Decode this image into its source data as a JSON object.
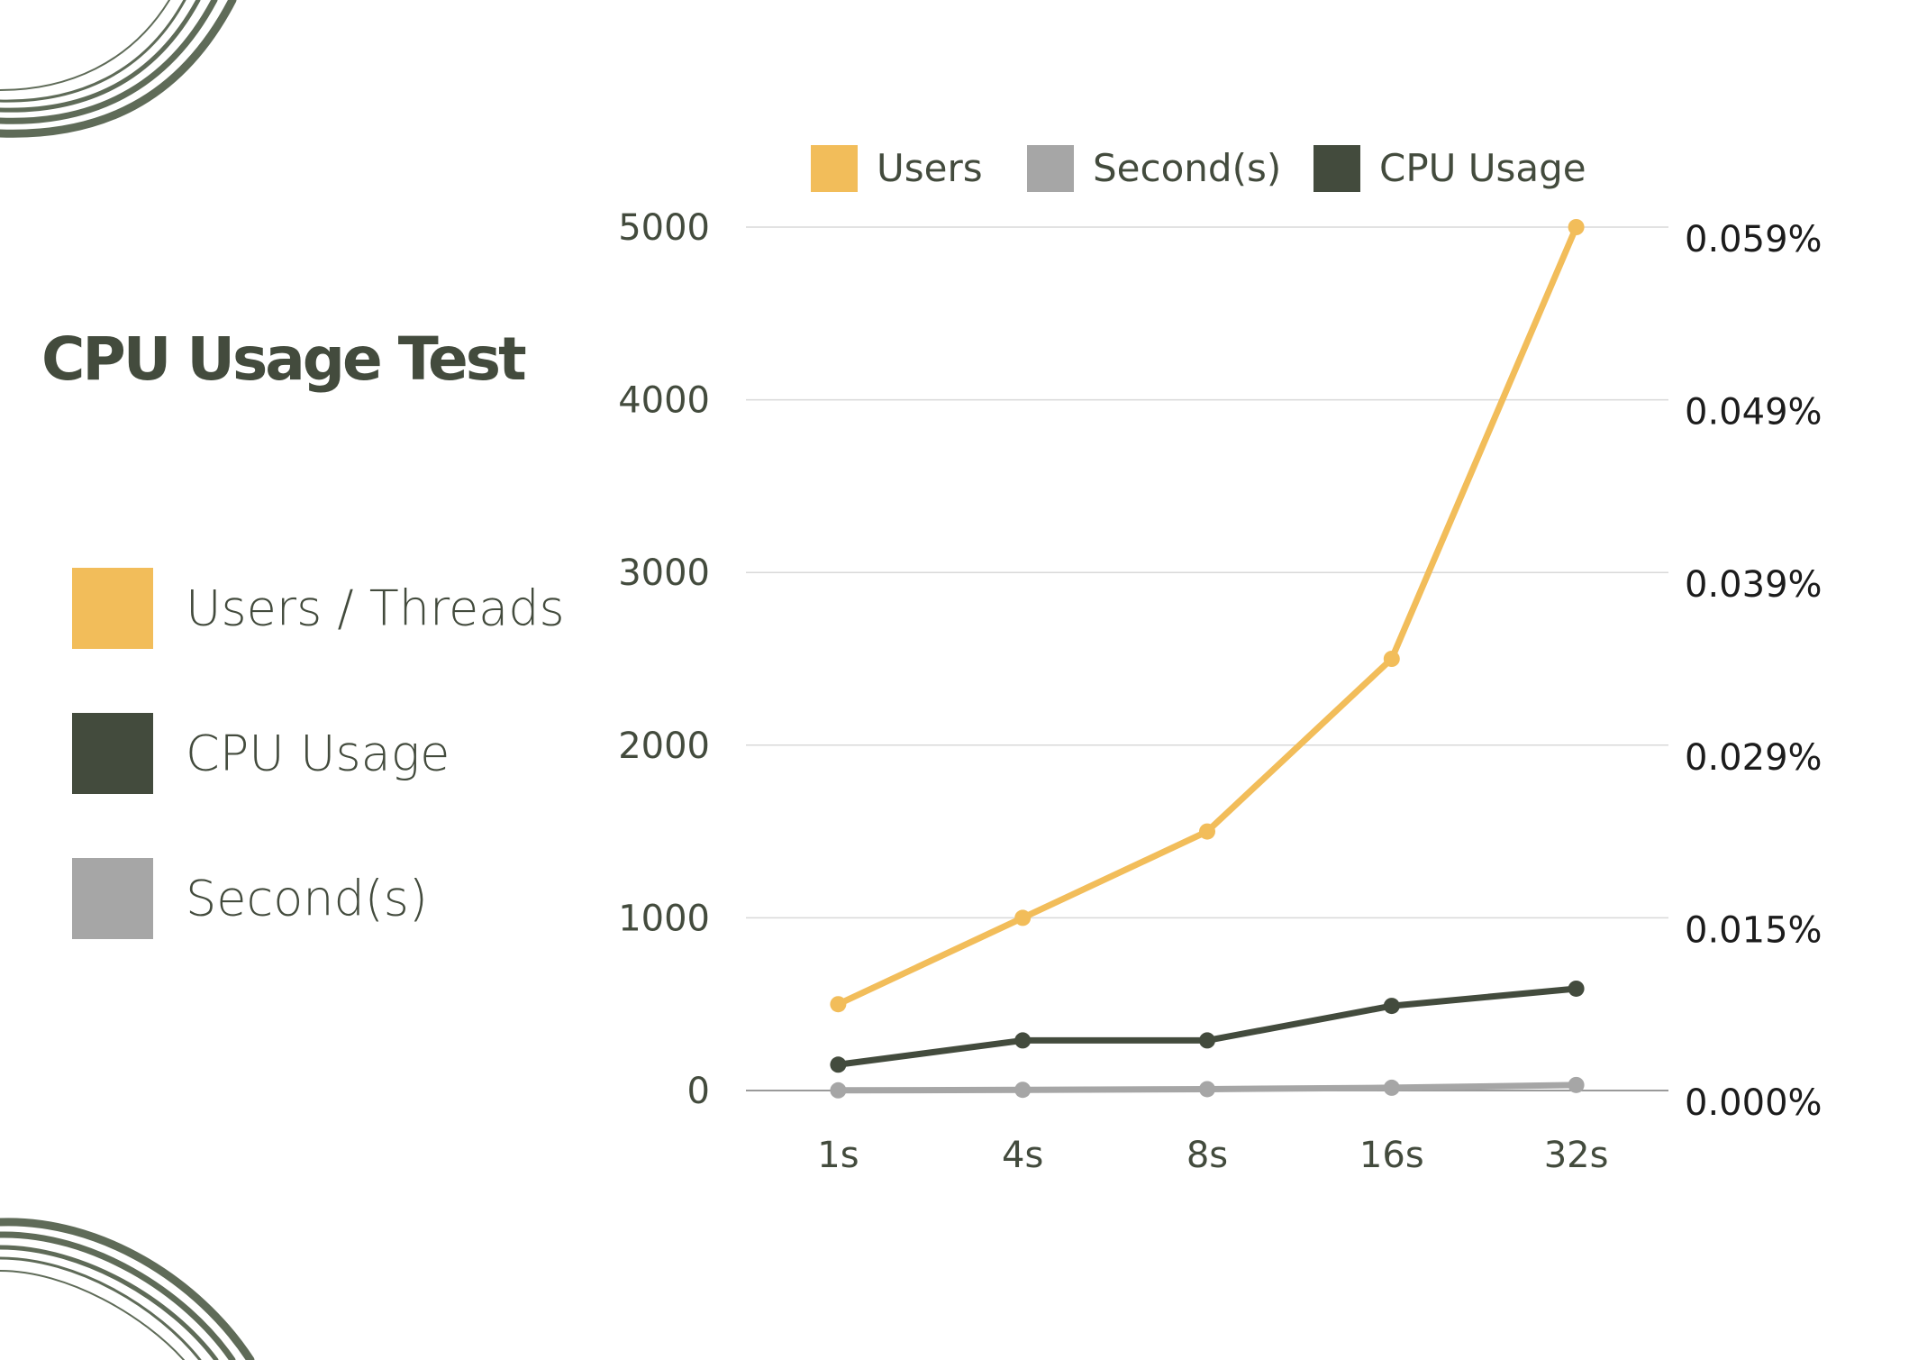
{
  "title": "CPU Usage Test",
  "side_legend": [
    {
      "label": "Users / Threads",
      "color": "#f2bd5a"
    },
    {
      "label": "CPU Usage",
      "color": "#434b3d"
    },
    {
      "label": "Second(s)",
      "color": "#a6a6a6"
    }
  ],
  "chart_data": {
    "type": "line",
    "categories": [
      "1s",
      "4s",
      "8s",
      "16s",
      "32s"
    ],
    "ylim": [
      0,
      5000
    ],
    "y_ticks": [
      "0",
      "1000",
      "2000",
      "3000",
      "4000",
      "5000"
    ],
    "y2_ticks": [
      "0.000%",
      "0.015%",
      "0.029%",
      "0.039%",
      "0.049%",
      "0.059%"
    ],
    "grid": true,
    "legend_position": "top",
    "series": [
      {
        "name": "Users",
        "color": "#f2bd5a",
        "values": [
          500,
          1000,
          1500,
          2500,
          5000
        ]
      },
      {
        "name": "Second(s)",
        "color": "#a6a6a6",
        "values": [
          1,
          4,
          8,
          16,
          32
        ]
      },
      {
        "name": "CPU Usage",
        "color": "#434b3d",
        "values": [
          150,
          290,
          290,
          490,
          590
        ]
      }
    ]
  }
}
